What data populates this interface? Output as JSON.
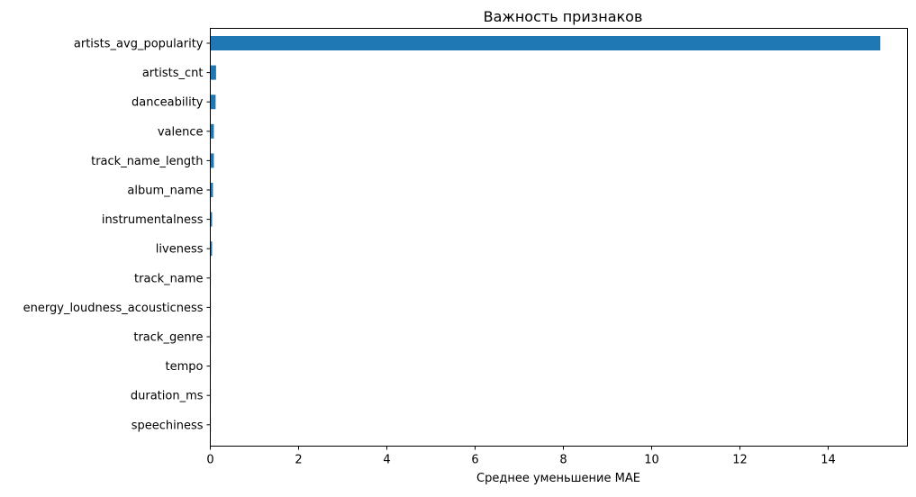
{
  "chart_data": {
    "type": "bar",
    "orientation": "horizontal",
    "title": "Важность признаков",
    "xlabel": "Среднее уменьшение MAE",
    "ylabel": "",
    "xlim": [
      0,
      16
    ],
    "xticks": [
      "0",
      "2",
      "4",
      "6",
      "8",
      "10",
      "12",
      "14"
    ],
    "grid": false,
    "bar_color": "#1f77b4",
    "categories": [
      "artists_avg_popularity",
      "artists_cnt",
      "danceability",
      "valence",
      "track_name_length",
      "album_name",
      "instrumentalness",
      "liveness",
      "track_name",
      "energy_loudness_acousticness",
      "track_genre",
      "tempo",
      "duration_ms",
      "speechiness"
    ],
    "values": [
      15.18,
      0.13,
      0.12,
      0.08,
      0.08,
      0.06,
      0.04,
      0.04,
      0.01,
      0.01,
      0.01,
      0.005,
      0.003,
      0.002
    ]
  }
}
